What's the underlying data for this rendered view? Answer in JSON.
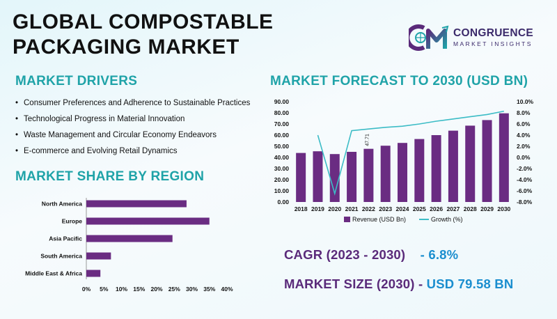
{
  "title_line1": "GLOBAL COMPOSTABLE",
  "title_line2": "PACKAGING MARKET",
  "logo": {
    "name": "CONGRUENCE",
    "tagline": "MARKET INSIGHTS",
    "icon": "cm-monogram-icon",
    "colors": [
      "#5a2a7a",
      "#1fa3a8"
    ]
  },
  "drivers": {
    "heading": "MARKET DRIVERS",
    "items": [
      "Consumer Preferences and Adherence to Sustainable Practices",
      "Technological Progress in Material Innovation",
      "Waste Management and Circular Economy Endeavors",
      "E-commerce and Evolving Retail Dynamics"
    ]
  },
  "share": {
    "heading": "MARKET SHARE BY REGION"
  },
  "forecast": {
    "heading": "MARKET FORECAST TO 2030 (USD BN)"
  },
  "stats": {
    "cagr_label": "CAGR (2023 - 2030)",
    "cagr_value": "- 6.8%",
    "size_label": "MARKET SIZE (2030) -",
    "size_value": "USD 79.58 BN"
  },
  "colors": {
    "accent": "#1fa3a8",
    "bar": "#6a2c82",
    "line": "#3cbcc6",
    "value": "#1b8ecf"
  },
  "chart_data": [
    {
      "type": "bar",
      "orientation": "horizontal",
      "categories": [
        "North America",
        "Europe",
        "Asia Pacific",
        "South America",
        "Middle East & Africa"
      ],
      "values": [
        28.5,
        35,
        24.5,
        7,
        4
      ],
      "xlim": [
        0,
        40
      ],
      "xticks": [
        "0%",
        "5%",
        "10%",
        "15%",
        "20%",
        "25%",
        "30%",
        "35%",
        "40%"
      ],
      "grid": false
    },
    {
      "type": "bar+line",
      "categories": [
        "2018",
        "2019",
        "2020",
        "2021",
        "2022",
        "2023",
        "2024",
        "2025",
        "2026",
        "2027",
        "2028",
        "2029",
        "2030"
      ],
      "series": [
        {
          "name": "Revenue (USD Bn)",
          "type": "bar",
          "axis": "left",
          "values": [
            44,
            45.5,
            43,
            45,
            47.71,
            50.5,
            53,
            56.5,
            60,
            64,
            68.5,
            73.5,
            79.58
          ]
        },
        {
          "name": "Growth (%)",
          "type": "line",
          "axis": "right",
          "values": [
            null,
            4.0,
            -6.5,
            4.8,
            5.1,
            5.4,
            5.6,
            6.0,
            6.5,
            6.9,
            7.3,
            7.7,
            8.3
          ]
        }
      ],
      "data_labels": [
        {
          "category": "2022",
          "text": "47.71"
        }
      ],
      "y_left": {
        "range": [
          0,
          90
        ],
        "ticks": [
          "0.00",
          "10.00",
          "20.00",
          "30.00",
          "40.00",
          "50.00",
          "60.00",
          "70.00",
          "80.00",
          "90.00"
        ]
      },
      "y_right": {
        "range": [
          -8,
          10
        ],
        "ticks": [
          "-8.0%",
          "-6.0%",
          "-4.0%",
          "-2.0%",
          "0.0%",
          "2.0%",
          "4.0%",
          "6.0%",
          "8.0%",
          "10.0%"
        ]
      },
      "legend_placement": "bottom",
      "grid": false
    }
  ]
}
